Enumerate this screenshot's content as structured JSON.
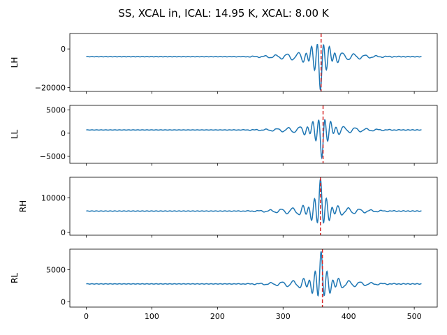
{
  "figure": {
    "title": "SS, XCAL in, ICAL: 14.95 K, XCAL: 8.00 K"
  },
  "colors": {
    "line": "#1f77b4",
    "marker": "#d62728",
    "axis": "#000000"
  },
  "chart_data": [
    {
      "type": "line",
      "ylabel": "LH",
      "xlim": [
        -25,
        535
      ],
      "ylim": [
        -22000,
        8000
      ],
      "xticks": [
        0,
        100,
        200,
        300,
        400,
        500
      ],
      "xtick_labels_visible": false,
      "yticks": [
        0,
        -20000
      ],
      "ytick_labels": [
        "0",
        "−20000"
      ],
      "baseline": -4000,
      "peak_x": 357,
      "peak_sign": -1,
      "peak_amplitude": 17500,
      "marker_x": 358,
      "marker_style": "dashed",
      "x": [
        0,
        300,
        330,
        340,
        345,
        350,
        354,
        357,
        360,
        363,
        366,
        370,
        375,
        380,
        390,
        400,
        420,
        450,
        511
      ],
      "values": [
        -4000,
        -3800,
        -4300,
        -4800,
        -3000,
        4000,
        -9000,
        -21500,
        5000,
        -12000,
        2000,
        -6500,
        -1000,
        -5500,
        -3000,
        -4200,
        -3900,
        -4000,
        -4000
      ]
    },
    {
      "type": "line",
      "ylabel": "LL",
      "xlim": [
        -25,
        535
      ],
      "ylim": [
        -6500,
        6000
      ],
      "xticks": [
        0,
        100,
        200,
        300,
        400,
        500
      ],
      "xtick_labels_visible": false,
      "yticks": [
        5000,
        0,
        -5000
      ],
      "ytick_labels": [
        "5000",
        "0",
        "−5000"
      ],
      "baseline": 700,
      "peak_x": 359,
      "peak_sign": -1,
      "peak_amplitude": 6000,
      "marker_x": 361,
      "marker_style": "dashed",
      "x": [
        0,
        250,
        300,
        315,
        325,
        335,
        343,
        350,
        356,
        362,
        368,
        375,
        383,
        390,
        400,
        420,
        450,
        511
      ],
      "values": [
        700,
        700,
        600,
        1200,
        100,
        1800,
        -500,
        5200,
        -4000,
        -5200,
        4500,
        -1800,
        2800,
        -300,
        1400,
        500,
        800,
        700
      ]
    },
    {
      "type": "line",
      "ylabel": "RH",
      "xlim": [
        -25,
        535
      ],
      "ylim": [
        -800,
        16000
      ],
      "xticks": [
        0,
        100,
        200,
        300,
        400,
        500
      ],
      "xtick_labels_visible": false,
      "yticks": [
        10000,
        0
      ],
      "ytick_labels": [
        "10000",
        "0"
      ],
      "baseline": 6200,
      "peak_x": 357,
      "peak_sign": 1,
      "peak_amplitude": 9300,
      "marker_x": 357,
      "marker_style": "dashed",
      "x": [
        0,
        300,
        330,
        340,
        345,
        350,
        353,
        357,
        360,
        363,
        366,
        370,
        375,
        380,
        390,
        400,
        420,
        450,
        511
      ],
      "values": [
        6200,
        6300,
        5800,
        7000,
        5000,
        8000,
        200,
        15500,
        0,
        11000,
        3000,
        8000,
        5000,
        7000,
        5800,
        6400,
        6100,
        6200,
        6200
      ]
    },
    {
      "type": "line",
      "ylabel": "RL",
      "xlim": [
        -25,
        535
      ],
      "ylim": [
        -800,
        8200
      ],
      "xticks": [
        0,
        100,
        200,
        300,
        400,
        500
      ],
      "xtick_labels_visible": true,
      "xtick_labels": [
        "0",
        "100",
        "200",
        "300",
        "400",
        "500"
      ],
      "yticks": [
        5000,
        0
      ],
      "ytick_labels": [
        "5000",
        "0"
      ],
      "baseline": 2800,
      "peak_x": 358,
      "peak_sign": 1,
      "peak_amplitude": 5000,
      "marker_x": 360,
      "marker_style": "dashed",
      "x": [
        0,
        250,
        300,
        315,
        325,
        335,
        343,
        350,
        357,
        363,
        370,
        378,
        385,
        393,
        400,
        420,
        450,
        511
      ],
      "values": [
        2800,
        2800,
        2700,
        3200,
        2000,
        3800,
        1200,
        6500,
        7800,
        -400,
        5000,
        0,
        4000,
        1800,
        3200,
        2500,
        2900,
        2800
      ]
    }
  ]
}
